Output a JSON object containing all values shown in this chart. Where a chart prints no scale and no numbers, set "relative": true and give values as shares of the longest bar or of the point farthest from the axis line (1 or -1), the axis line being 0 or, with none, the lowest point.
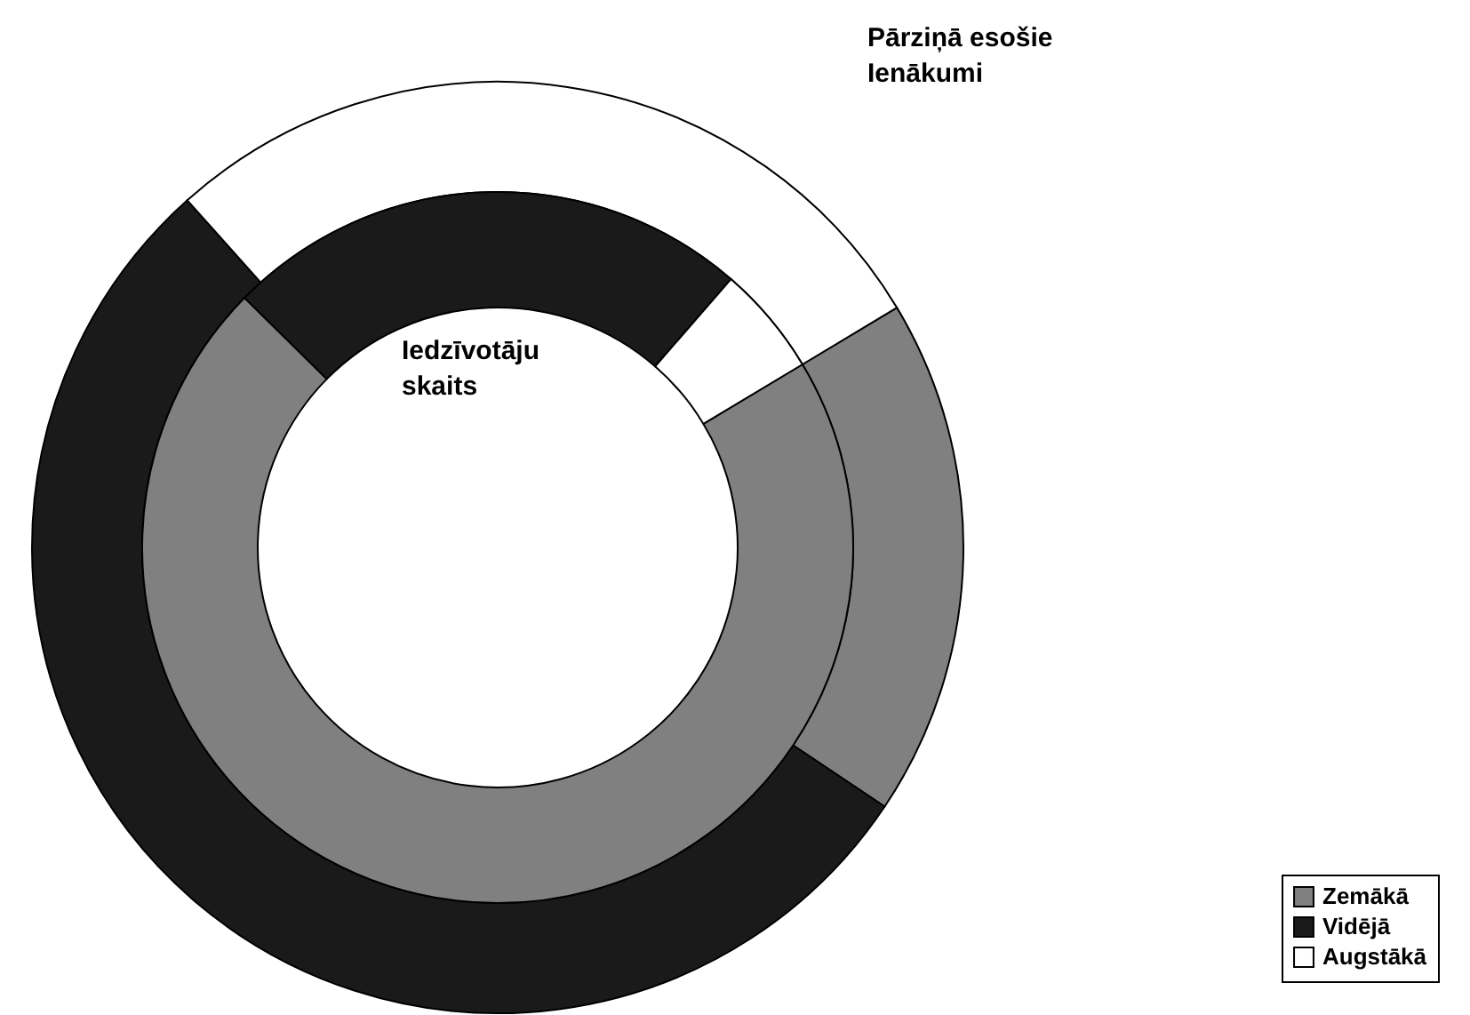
{
  "chart_data": {
    "type": "donut",
    "categories": [
      "Zemākā",
      "Vidējā",
      "Augstākā"
    ],
    "colors": [
      "#808080",
      "#1a1a1a",
      "#ffffff"
    ],
    "series": [
      {
        "name": "Pārziņā esošie Ienākumi",
        "values": [
          18,
          54,
          28
        ]
      },
      {
        "name": "Iedzīvotāju skaits",
        "values": [
          71,
          24,
          5
        ]
      }
    ],
    "relative": true,
    "legend": "bottom right"
  }
}
